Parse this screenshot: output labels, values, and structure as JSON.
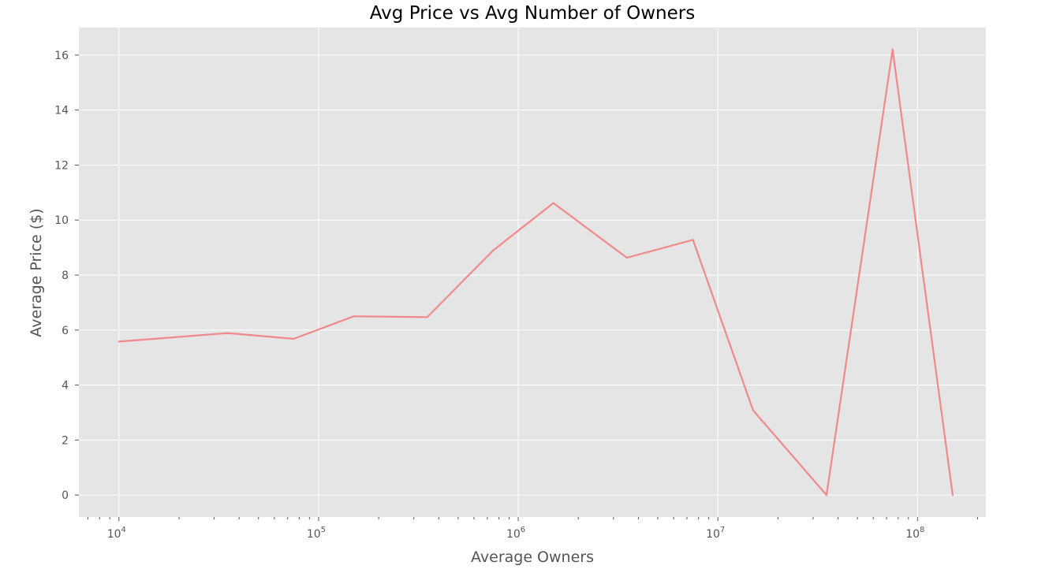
{
  "chart_data": {
    "type": "line",
    "title": "Avg Price vs Avg Number of Owners",
    "xlabel": "Average Owners",
    "ylabel": "Average Price ($)",
    "xscale": "log",
    "xlim": [
      6300,
      220000000
    ],
    "ylim": [
      -0.8,
      17.0
    ],
    "grid": true,
    "background": "#e5e5e5",
    "line_color": "#f08a8a",
    "x_ticks": [
      {
        "value": 10000,
        "base": "10",
        "exp": "4"
      },
      {
        "value": 100000,
        "base": "10",
        "exp": "5"
      },
      {
        "value": 1000000,
        "base": "10",
        "exp": "6"
      },
      {
        "value": 10000000,
        "base": "10",
        "exp": "7"
      },
      {
        "value": 100000000,
        "base": "10",
        "exp": "8"
      }
    ],
    "y_ticks": [
      0,
      2,
      4,
      6,
      8,
      10,
      12,
      14,
      16
    ],
    "series": [
      {
        "x": [
          10000,
          35000,
          75000,
          150000,
          350000,
          750000,
          1500000,
          3500000,
          7500000,
          15000000,
          35000000,
          75000000,
          150000000
        ],
        "y": [
          5.58,
          5.89,
          5.68,
          6.5,
          6.47,
          8.9,
          10.62,
          8.63,
          9.28,
          3.08,
          0.0,
          16.2,
          0.0
        ]
      }
    ]
  }
}
